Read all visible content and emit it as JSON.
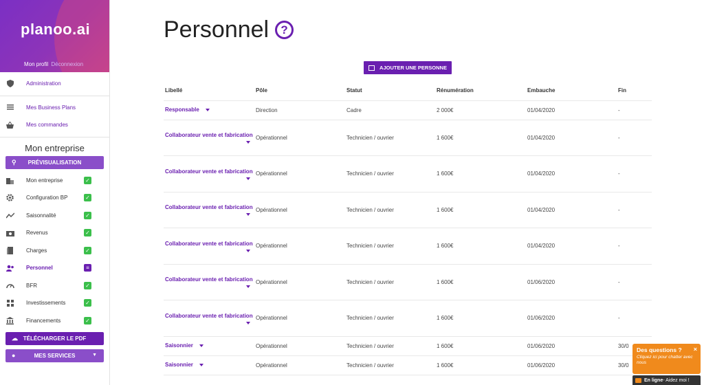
{
  "brand": {
    "logo": "planoo.ai"
  },
  "profile": {
    "my_profile": "Mon profil",
    "logout": "Déconnexion"
  },
  "sidebar": {
    "admin": "Administration",
    "business_plans": "Mes Business Plans",
    "orders": "Mes commandes",
    "section_title": "Mon entreprise",
    "preview_button": "PRÉVISUALISATION",
    "items": [
      {
        "label": "Mon entreprise",
        "icon": "building-icon",
        "status": "done"
      },
      {
        "label": "Configuration BP",
        "icon": "gear-icon",
        "status": "done"
      },
      {
        "label": "Saisonnalité",
        "icon": "trend-icon",
        "status": "done"
      },
      {
        "label": "Revenus",
        "icon": "cash-icon",
        "status": "done"
      },
      {
        "label": "Charges",
        "icon": "receipt-icon",
        "status": "done"
      },
      {
        "label": "Personnel",
        "icon": "people-icon",
        "status": "current"
      },
      {
        "label": "BFR",
        "icon": "gauge-icon",
        "status": "done"
      },
      {
        "label": "Investissements",
        "icon": "grid-icon",
        "status": "done"
      },
      {
        "label": "Financements",
        "icon": "bank-icon",
        "status": "done"
      }
    ],
    "download_button": "TÉLÉCHARGER LE PDF",
    "services_button": "MES SERVICES"
  },
  "main": {
    "title": "Personnel",
    "add_button": "AJOUTER UNE PERSONNE",
    "columns": [
      "Libellé",
      "Pôle",
      "Statut",
      "Rénumération",
      "Embauche",
      "Fin"
    ],
    "rows": [
      {
        "libelle": "Responsable",
        "pole": "Direction",
        "statut": "Cadre",
        "remu": "2 000€",
        "embauche": "01/04/2020",
        "fin": "-",
        "short": true
      },
      {
        "libelle": "Collaborateur vente et fabrication",
        "pole": "Opérationnel",
        "statut": "Technicien / ouvrier",
        "remu": "1 600€",
        "embauche": "01/04/2020",
        "fin": "-"
      },
      {
        "libelle": "Collaborateur vente et fabrication",
        "pole": "Opérationnel",
        "statut": "Technicien / ouvrier",
        "remu": "1 600€",
        "embauche": "01/04/2020",
        "fin": "-"
      },
      {
        "libelle": "Collaborateur vente et fabrication",
        "pole": "Opérationnel",
        "statut": "Technicien / ouvrier",
        "remu": "1 600€",
        "embauche": "01/04/2020",
        "fin": "-"
      },
      {
        "libelle": "Collaborateur vente et fabrication",
        "pole": "Opérationnel",
        "statut": "Technicien / ouvrier",
        "remu": "1 600€",
        "embauche": "01/04/2020",
        "fin": "-"
      },
      {
        "libelle": "Collaborateur vente et fabrication",
        "pole": "Opérationnel",
        "statut": "Technicien / ouvrier",
        "remu": "1 600€",
        "embauche": "01/06/2020",
        "fin": "-"
      },
      {
        "libelle": "Collaborateur vente et fabrication",
        "pole": "Opérationnel",
        "statut": "Technicien / ouvrier",
        "remu": "1 600€",
        "embauche": "01/06/2020",
        "fin": "-"
      },
      {
        "libelle": "Saisonnier",
        "pole": "Opérationnel",
        "statut": "Technicien / ouvrier",
        "remu": "1 600€",
        "embauche": "01/06/2020",
        "fin": "30/0",
        "short": true
      },
      {
        "libelle": "Saisonnier",
        "pole": "Opérationnel",
        "statut": "Technicien / ouvrier",
        "remu": "1 600€",
        "embauche": "01/06/2020",
        "fin": "30/0",
        "short": true
      }
    ]
  },
  "chat": {
    "title": "Des questions ?",
    "subtitle": "Cliquez ici pour chatter avec nous",
    "close": "×",
    "status": "En ligne",
    "status_suffix": " - Aidez moi !"
  },
  "colors": {
    "accent": "#6a1fb0",
    "check": "#3bbf4b",
    "chat": "#f08a1c"
  }
}
